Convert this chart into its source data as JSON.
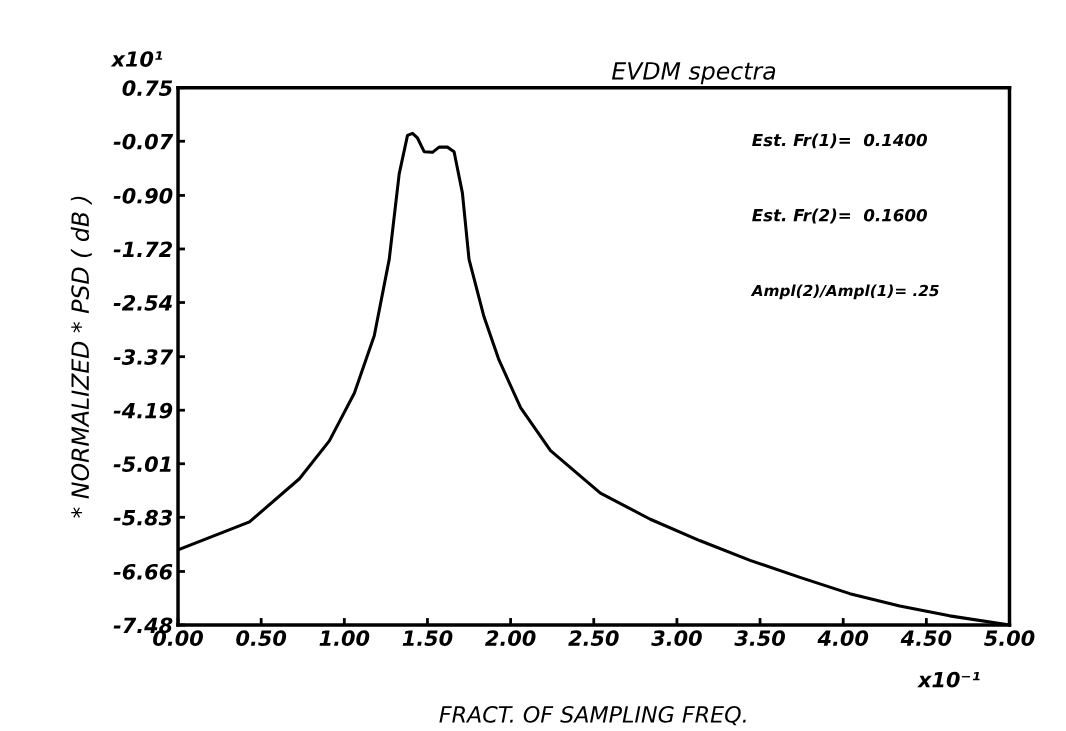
{
  "chart_data": {
    "type": "line",
    "title": "EVDM spectra",
    "xlabel": "FRACT. OF SAMPLING FREQ.",
    "ylabel": "* NORMALIZED * PSD ( dB )",
    "x": [
      0,
      0.43,
      0.73,
      0.91,
      1.06,
      1.18,
      1.27,
      1.33,
      1.38,
      1.41,
      1.44,
      1.48,
      1.53,
      1.57,
      1.62,
      1.66,
      1.71,
      1.75,
      1.84,
      1.93,
      2.06,
      2.24,
      2.54,
      2.84,
      3.14,
      3.44,
      3.74,
      4.04,
      4.34,
      4.64,
      5.0
    ],
    "series": [
      {
        "color": "#000000",
        "values": [
          -6.33,
          -5.9,
          -5.24,
          -4.66,
          -3.93,
          -3.05,
          -1.88,
          -0.57,
          0.02,
          0.05,
          -0.02,
          -0.23,
          -0.24,
          -0.16,
          -0.16,
          -0.23,
          -0.86,
          -1.88,
          -2.76,
          -3.42,
          -4.15,
          -4.81,
          -5.46,
          -5.86,
          -6.19,
          -6.49,
          -6.75,
          -7.0,
          -7.19,
          -7.34,
          -7.48
        ]
      }
    ],
    "xlim": [
      0,
      5
    ],
    "xticks": [
      {
        "value": 0,
        "label": "0.00"
      },
      {
        "value": 0.5,
        "label": "0.50"
      },
      {
        "value": 1,
        "label": "1.00"
      },
      {
        "value": 1.5,
        "label": "1.50"
      },
      {
        "value": 2,
        "label": "2.00"
      },
      {
        "value": 2.5,
        "label": "2.50"
      },
      {
        "value": 3,
        "label": "3.00"
      },
      {
        "value": 3.5,
        "label": "3.50"
      },
      {
        "value": 4,
        "label": "4.00"
      },
      {
        "value": 4.5,
        "label": "4.50"
      },
      {
        "value": 5,
        "label": "5.00"
      }
    ],
    "ylim": [
      -7.48,
      0.75
    ],
    "yticks": [
      0.75,
      -0.07,
      {
        "value": -0.9,
        "label": "-0.90"
      },
      -1.72,
      -2.54,
      -3.37,
      -4.19,
      -5.01,
      -5.83,
      -6.66,
      -7.48
    ],
    "grid": false,
    "legend": false,
    "marker": "none",
    "line_style": "solid",
    "annotations": [
      "x10¹",
      "x10⁻¹",
      "Est. Fr(1)=  0.1400",
      "Est. Fr(2)=  0.1600",
      "Ampl(2)/Ampl(1)= .25"
    ]
  }
}
